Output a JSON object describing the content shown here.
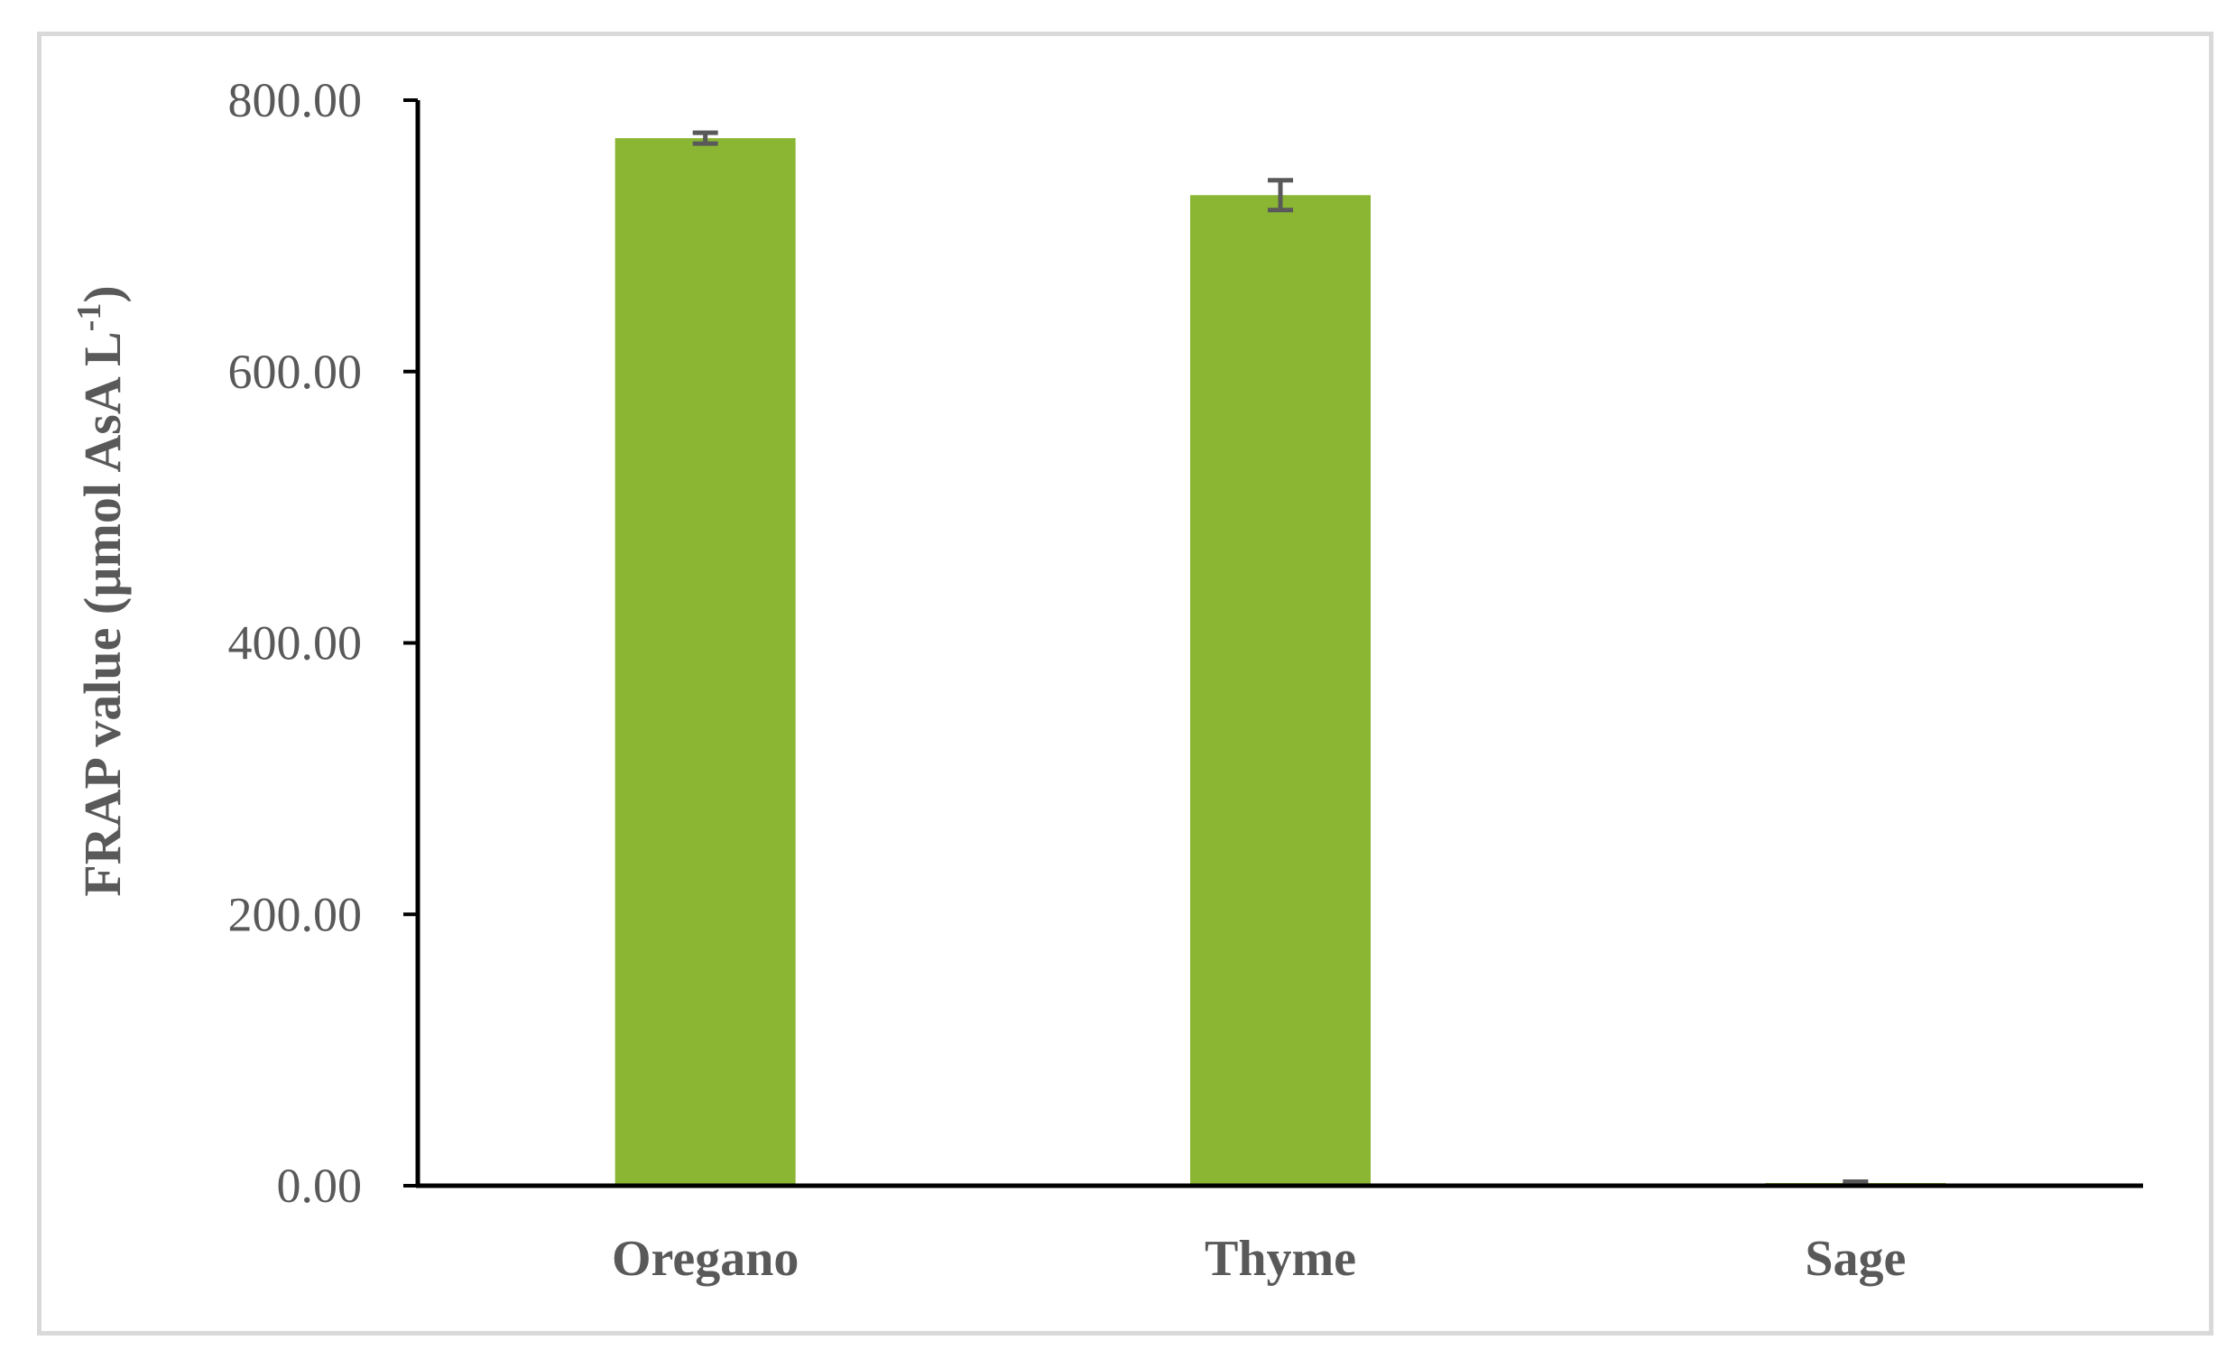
{
  "chart_data": {
    "type": "bar",
    "categories": [
      "Oregano",
      "Thyme",
      "Sage"
    ],
    "values": [
      772,
      730,
      2
    ],
    "errors": [
      4,
      11,
      1
    ],
    "title": "",
    "xlabel": "",
    "ylabel": "FRAP value (µmol AsA L",
    "ylabel_superscript": "-1",
    "ylabel_suffix": ")",
    "ylim": [
      0,
      800
    ],
    "yticks": [
      "0.00",
      "200.00",
      "400.00",
      "600.00",
      "800.00"
    ],
    "grid": false,
    "legend": "none",
    "colors": {
      "bar": "#8bb634",
      "error_bar": "#595959",
      "axis": "#000000",
      "text": "#595959",
      "frame": "#d9d9d9"
    }
  }
}
